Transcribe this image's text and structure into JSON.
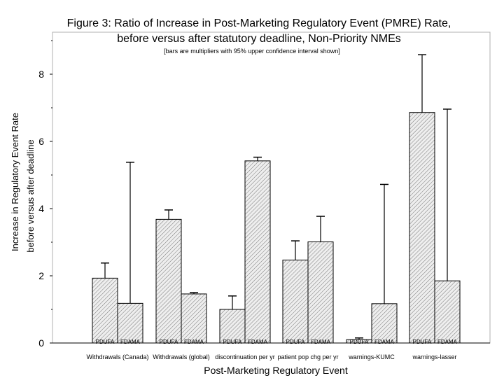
{
  "chart_data": {
    "type": "bar",
    "title_line1": "Figure 3: Ratio of Increase in Post-Marketing Regulatory Event (PMRE) Rate,",
    "title_line2": "before versus after statutory deadline, Non-Priority NMEs",
    "subtitle": "[bars are multipliers with 95% upper confidence interval shown]",
    "ylabel_line1": "Increase in Regulatory Event Rate",
    "ylabel_line2": "before versus after deadline",
    "xlabel": "Post-Marketing Regulatory Event",
    "ylim": [
      0,
      9
    ],
    "yticks": [
      0,
      2,
      4,
      6,
      8
    ],
    "grid": false,
    "categories": [
      "Withdrawals (Canada)",
      "Withdrawals (global)",
      "discontinuation per yr",
      "patient pop chg per yr",
      "warnings-KUMC",
      "warnings-lasser"
    ],
    "series": [
      {
        "name": "PDUFA",
        "values": [
          1.93,
          3.68,
          1.0,
          2.47,
          0.1,
          6.86
        ],
        "upper_ci": [
          2.38,
          3.96,
          1.4,
          3.04,
          0.15,
          8.58
        ]
      },
      {
        "name": "FDAMA",
        "values": [
          1.18,
          1.46,
          5.42,
          3.01,
          1.17,
          1.85
        ],
        "upper_ci": [
          5.38,
          1.5,
          5.53,
          3.77,
          4.72,
          6.96
        ]
      }
    ]
  }
}
